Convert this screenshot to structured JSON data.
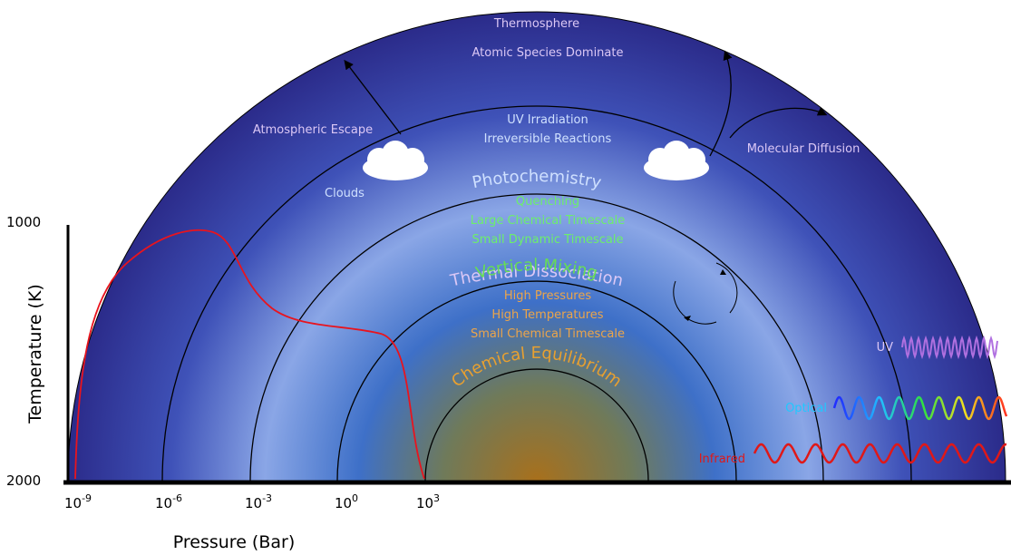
{
  "thermosphere": {
    "title": "Thermosphere",
    "subtitle": "Atomic Species Dominate"
  },
  "escape": "Atmospheric Escape",
  "diffusion": "Molecular Diffusion",
  "clouds": "Clouds",
  "thermal_dissociation": {
    "title": "Thermal Dissociation",
    "lines": [
      "UV Irradiation",
      "Irreversible Reactions"
    ]
  },
  "photochemistry": {
    "title": "Photochemistry",
    "lines": [
      "Quenching",
      "Large Chemical Timescale",
      "Small Dynamic Timescale"
    ]
  },
  "vertical_mixing": {
    "title": "Vertical Mixing",
    "lines": [
      "High Pressures",
      "High Temperatures",
      "Small Chemical Timescale"
    ]
  },
  "chemical_equilibrium": {
    "title": "Chemical Equilibrium"
  },
  "radiation": [
    "UV",
    "Optical",
    "Infrared"
  ],
  "y_axis": {
    "label": "Temperature (K)",
    "ticks": [
      "1000",
      "2000"
    ]
  },
  "x_axis": {
    "label": "Pressure (Bar)",
    "ticks": [
      {
        "base": "10",
        "exp": "-9"
      },
      {
        "base": "10",
        "exp": "-6"
      },
      {
        "base": "10",
        "exp": "-3"
      },
      {
        "base": "10",
        "exp": "0"
      },
      {
        "base": "10",
        "exp": "3"
      }
    ]
  }
}
